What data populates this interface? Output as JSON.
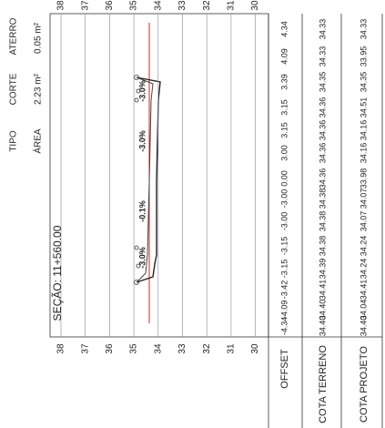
{
  "header": {
    "tipo": "TIPO",
    "corte": "CORTE",
    "aterro": "ATERRO",
    "area": "ÁREA",
    "area_corte": "2.23 m²",
    "area_aterro": "0.05 m²",
    "secao": "SEÇÃO: 11+560.00"
  },
  "elevation_labels": [
    "38",
    "37",
    "36",
    "35",
    "34",
    "33",
    "32",
    "31",
    "30"
  ],
  "slope_labels": [
    "-3.0%",
    "-3.0%",
    "-0.1%",
    "-3.0%"
  ],
  "table": {
    "headers": [
      "OFFSET",
      "COTA TERRENO",
      "COTA PROJETO"
    ],
    "rows": [
      [
        "4.34",
        "34.33",
        "34.33"
      ],
      [
        "4.09",
        "34.33",
        "33.95"
      ],
      [
        "3.39",
        "34.35",
        "34.35"
      ],
      [
        "3.15",
        "34.36",
        "34.51"
      ],
      [
        "3.15",
        "34.36",
        "34.16"
      ],
      [
        "3.00",
        "34.36",
        "34.16"
      ],
      [
        "0.00",
        "34.36",
        "33.98"
      ],
      [
        "-3.00",
        "34.38",
        "34.07"
      ],
      [
        "-3.00",
        "34.38",
        "34.07"
      ],
      [
        "-3.15",
        "34.38",
        "34.24"
      ],
      [
        "-3.15",
        "34.39",
        "34.24"
      ],
      [
        "-3.42",
        "34.41",
        "34.41"
      ],
      [
        "-4.09",
        "34.40",
        "34.04"
      ],
      [
        "-4.34",
        "34.40",
        "34.40"
      ]
    ]
  }
}
